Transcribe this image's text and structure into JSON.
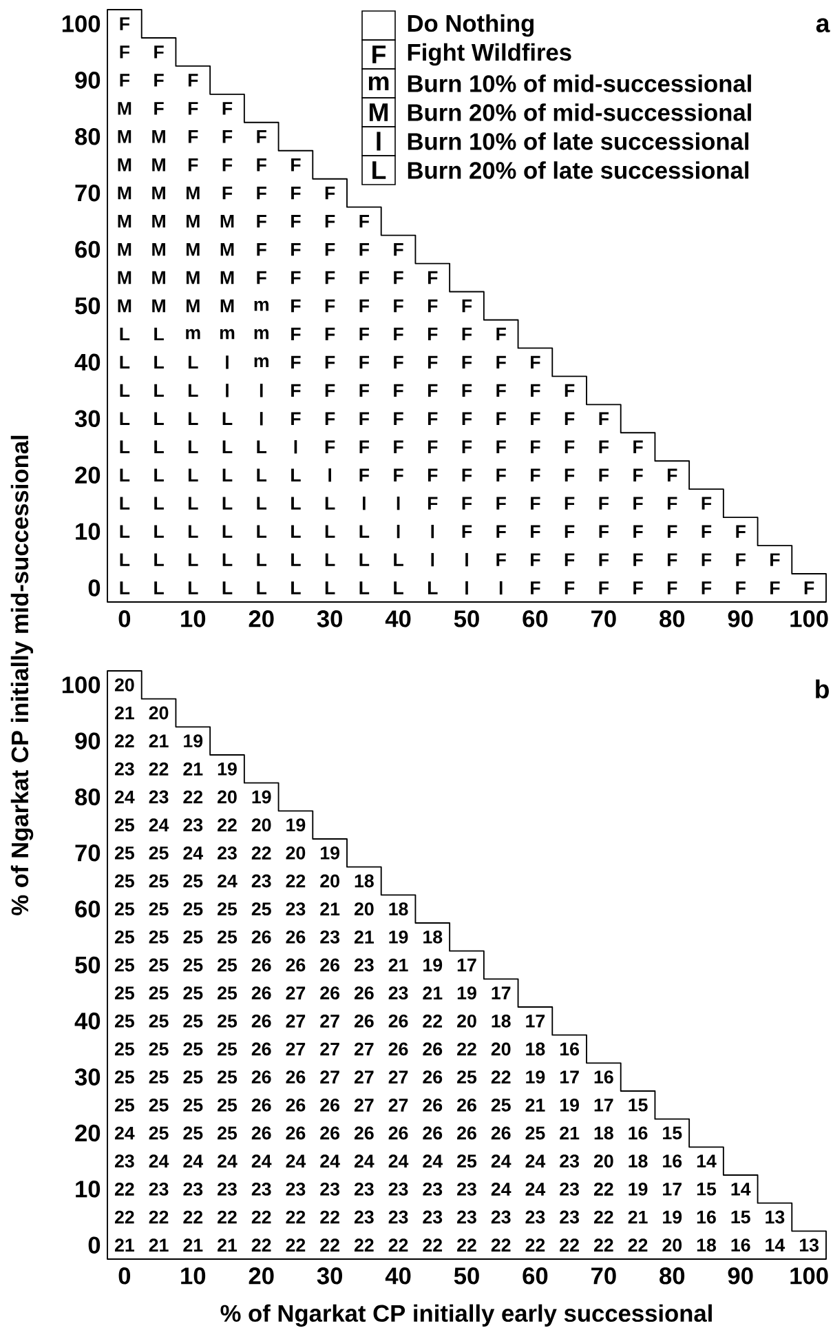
{
  "chart_data": [
    {
      "type": "heatmap",
      "title": "a",
      "ylabel": "% of Ngarkat CP initially mid-successional",
      "annotations": [
        "Do Nothing",
        "Fight Wildfires",
        "Burn 10% of mid-successional",
        "Burn 20% of mid-successional",
        "Burn 10% of late successional",
        "Burn 20% of late successional"
      ],
      "categories": [
        "0",
        null,
        "10",
        null,
        "20",
        null,
        "30",
        null,
        "40",
        null,
        "50",
        null,
        "60",
        null,
        "70",
        null,
        "80",
        null,
        "90",
        null,
        "100"
      ],
      "y_categories": [
        "100",
        null,
        "90",
        null,
        "80",
        null,
        "70",
        null,
        "60",
        null,
        "50",
        null,
        "40",
        null,
        "30",
        null,
        "20",
        null,
        "10",
        null,
        "0"
      ],
      "cells": [
        [
          "F",
          null,
          null,
          null,
          null,
          null,
          null,
          null,
          null,
          null,
          null,
          null,
          null,
          null,
          null,
          null,
          null,
          null,
          null,
          null,
          null
        ],
        [
          "F",
          "F",
          null,
          null,
          null,
          null,
          null,
          null,
          null,
          null,
          null,
          null,
          null,
          null,
          null,
          null,
          null,
          null,
          null,
          null,
          null
        ],
        [
          "F",
          "F",
          "F",
          null,
          null,
          null,
          null,
          null,
          null,
          null,
          null,
          null,
          null,
          null,
          null,
          null,
          null,
          null,
          null,
          null,
          null
        ],
        [
          "M",
          "F",
          "F",
          "F",
          null,
          null,
          null,
          null,
          null,
          null,
          null,
          null,
          null,
          null,
          null,
          null,
          null,
          null,
          null,
          null,
          null
        ],
        [
          "M",
          "M",
          "F",
          "F",
          "F",
          null,
          null,
          null,
          null,
          null,
          null,
          null,
          null,
          null,
          null,
          null,
          null,
          null,
          null,
          null,
          null
        ],
        [
          "M",
          "M",
          "F",
          "F",
          "F",
          "F",
          null,
          null,
          null,
          null,
          null,
          null,
          null,
          null,
          null,
          null,
          null,
          null,
          null,
          null,
          null
        ],
        [
          "M",
          "M",
          "M",
          "F",
          "F",
          "F",
          "F",
          null,
          null,
          null,
          null,
          null,
          null,
          null,
          null,
          null,
          null,
          null,
          null,
          null,
          null
        ],
        [
          "M",
          "M",
          "M",
          "M",
          "F",
          "F",
          "F",
          "F",
          null,
          null,
          null,
          null,
          null,
          null,
          null,
          null,
          null,
          null,
          null,
          null,
          null
        ],
        [
          "M",
          "M",
          "M",
          "M",
          "F",
          "F",
          "F",
          "F",
          "F",
          null,
          null,
          null,
          null,
          null,
          null,
          null,
          null,
          null,
          null,
          null,
          null
        ],
        [
          "M",
          "M",
          "M",
          "M",
          "F",
          "F",
          "F",
          "F",
          "F",
          "F",
          null,
          null,
          null,
          null,
          null,
          null,
          null,
          null,
          null,
          null,
          null
        ],
        [
          "M",
          "M",
          "M",
          "M",
          "m",
          "F",
          "F",
          "F",
          "F",
          "F",
          "F",
          null,
          null,
          null,
          null,
          null,
          null,
          null,
          null,
          null,
          null
        ],
        [
          "L",
          "L",
          "m",
          "m",
          "m",
          "F",
          "F",
          "F",
          "F",
          "F",
          "F",
          "F",
          null,
          null,
          null,
          null,
          null,
          null,
          null,
          null,
          null
        ],
        [
          "L",
          "L",
          "L",
          "l",
          "m",
          "F",
          "F",
          "F",
          "F",
          "F",
          "F",
          "F",
          "F",
          null,
          null,
          null,
          null,
          null,
          null,
          null,
          null
        ],
        [
          "L",
          "L",
          "L",
          "l",
          "l",
          "F",
          "F",
          "F",
          "F",
          "F",
          "F",
          "F",
          "F",
          "F",
          null,
          null,
          null,
          null,
          null,
          null,
          null
        ],
        [
          "L",
          "L",
          "L",
          "L",
          "l",
          "F",
          "F",
          "F",
          "F",
          "F",
          "F",
          "F",
          "F",
          "F",
          "F",
          null,
          null,
          null,
          null,
          null,
          null
        ],
        [
          "L",
          "L",
          "L",
          "L",
          "L",
          "l",
          "F",
          "F",
          "F",
          "F",
          "F",
          "F",
          "F",
          "F",
          "F",
          "F",
          null,
          null,
          null,
          null,
          null
        ],
        [
          "L",
          "L",
          "L",
          "L",
          "L",
          "L",
          "l",
          "F",
          "F",
          "F",
          "F",
          "F",
          "F",
          "F",
          "F",
          "F",
          "F",
          null,
          null,
          null,
          null
        ],
        [
          "L",
          "L",
          "L",
          "L",
          "L",
          "L",
          "L",
          "l",
          "l",
          "F",
          "F",
          "F",
          "F",
          "F",
          "F",
          "F",
          "F",
          "F",
          null,
          null,
          null
        ],
        [
          "L",
          "L",
          "L",
          "L",
          "L",
          "L",
          "L",
          "L",
          "l",
          "l",
          "F",
          "F",
          "F",
          "F",
          "F",
          "F",
          "F",
          "F",
          "F",
          null,
          null
        ],
        [
          "L",
          "L",
          "L",
          "L",
          "L",
          "L",
          "L",
          "L",
          "L",
          "l",
          "l",
          "F",
          "F",
          "F",
          "F",
          "F",
          "F",
          "F",
          "F",
          "F",
          null
        ],
        [
          "L",
          "L",
          "L",
          "L",
          "L",
          "L",
          "L",
          "L",
          "L",
          "L",
          "l",
          "l",
          "F",
          "F",
          "F",
          "F",
          "F",
          "F",
          "F",
          "F",
          "F"
        ]
      ]
    },
    {
      "type": "heatmap",
      "title": "b",
      "xlabel": "% of Ngarkat CP initially early successional",
      "data_labels": true,
      "categories": [
        "0",
        null,
        "10",
        null,
        "20",
        null,
        "30",
        null,
        "40",
        null,
        "50",
        null,
        "60",
        null,
        "70",
        null,
        "80",
        null,
        "90",
        null,
        "100"
      ],
      "y_categories": [
        "100",
        null,
        "90",
        null,
        "80",
        null,
        "70",
        null,
        "60",
        null,
        "50",
        null,
        "40",
        null,
        "30",
        null,
        "20",
        null,
        "10",
        null,
        "0"
      ],
      "cells": [
        [
          20,
          null,
          null,
          null,
          null,
          null,
          null,
          null,
          null,
          null,
          null,
          null,
          null,
          null,
          null,
          null,
          null,
          null,
          null,
          null,
          null
        ],
        [
          21,
          20,
          null,
          null,
          null,
          null,
          null,
          null,
          null,
          null,
          null,
          null,
          null,
          null,
          null,
          null,
          null,
          null,
          null,
          null,
          null
        ],
        [
          22,
          21,
          19,
          null,
          null,
          null,
          null,
          null,
          null,
          null,
          null,
          null,
          null,
          null,
          null,
          null,
          null,
          null,
          null,
          null,
          null
        ],
        [
          23,
          22,
          21,
          19,
          null,
          null,
          null,
          null,
          null,
          null,
          null,
          null,
          null,
          null,
          null,
          null,
          null,
          null,
          null,
          null,
          null
        ],
        [
          24,
          23,
          22,
          20,
          19,
          null,
          null,
          null,
          null,
          null,
          null,
          null,
          null,
          null,
          null,
          null,
          null,
          null,
          null,
          null,
          null
        ],
        [
          25,
          24,
          23,
          22,
          20,
          19,
          null,
          null,
          null,
          null,
          null,
          null,
          null,
          null,
          null,
          null,
          null,
          null,
          null,
          null,
          null
        ],
        [
          25,
          25,
          24,
          23,
          22,
          20,
          19,
          null,
          null,
          null,
          null,
          null,
          null,
          null,
          null,
          null,
          null,
          null,
          null,
          null,
          null
        ],
        [
          25,
          25,
          25,
          24,
          23,
          22,
          20,
          18,
          null,
          null,
          null,
          null,
          null,
          null,
          null,
          null,
          null,
          null,
          null,
          null,
          null
        ],
        [
          25,
          25,
          25,
          25,
          25,
          23,
          21,
          20,
          18,
          null,
          null,
          null,
          null,
          null,
          null,
          null,
          null,
          null,
          null,
          null,
          null
        ],
        [
          25,
          25,
          25,
          25,
          26,
          26,
          23,
          21,
          19,
          18,
          null,
          null,
          null,
          null,
          null,
          null,
          null,
          null,
          null,
          null,
          null
        ],
        [
          25,
          25,
          25,
          25,
          26,
          26,
          26,
          23,
          21,
          19,
          17,
          null,
          null,
          null,
          null,
          null,
          null,
          null,
          null,
          null,
          null
        ],
        [
          25,
          25,
          25,
          25,
          26,
          27,
          26,
          26,
          23,
          21,
          19,
          17,
          null,
          null,
          null,
          null,
          null,
          null,
          null,
          null,
          null
        ],
        [
          25,
          25,
          25,
          25,
          26,
          27,
          27,
          26,
          26,
          22,
          20,
          18,
          17,
          null,
          null,
          null,
          null,
          null,
          null,
          null,
          null
        ],
        [
          25,
          25,
          25,
          25,
          26,
          27,
          27,
          27,
          26,
          26,
          22,
          20,
          18,
          16,
          null,
          null,
          null,
          null,
          null,
          null,
          null
        ],
        [
          25,
          25,
          25,
          25,
          26,
          26,
          27,
          27,
          27,
          26,
          25,
          22,
          19,
          17,
          16,
          null,
          null,
          null,
          null,
          null,
          null
        ],
        [
          25,
          25,
          25,
          25,
          26,
          26,
          26,
          27,
          27,
          26,
          26,
          25,
          21,
          19,
          17,
          15,
          null,
          null,
          null,
          null,
          null
        ],
        [
          24,
          25,
          25,
          25,
          26,
          26,
          26,
          26,
          26,
          26,
          26,
          26,
          25,
          21,
          18,
          16,
          15,
          null,
          null,
          null,
          null
        ],
        [
          23,
          24,
          24,
          24,
          24,
          24,
          24,
          24,
          24,
          24,
          25,
          24,
          24,
          23,
          20,
          18,
          16,
          14,
          null,
          null,
          null
        ],
        [
          22,
          23,
          23,
          23,
          23,
          23,
          23,
          23,
          23,
          23,
          23,
          24,
          24,
          23,
          22,
          19,
          17,
          15,
          14,
          null,
          null
        ],
        [
          22,
          22,
          22,
          22,
          22,
          22,
          22,
          23,
          23,
          23,
          23,
          23,
          23,
          23,
          22,
          21,
          19,
          16,
          15,
          13,
          null
        ],
        [
          21,
          21,
          21,
          21,
          22,
          22,
          22,
          22,
          22,
          22,
          22,
          22,
          22,
          22,
          22,
          22,
          20,
          18,
          16,
          14,
          13
        ]
      ]
    }
  ]
}
